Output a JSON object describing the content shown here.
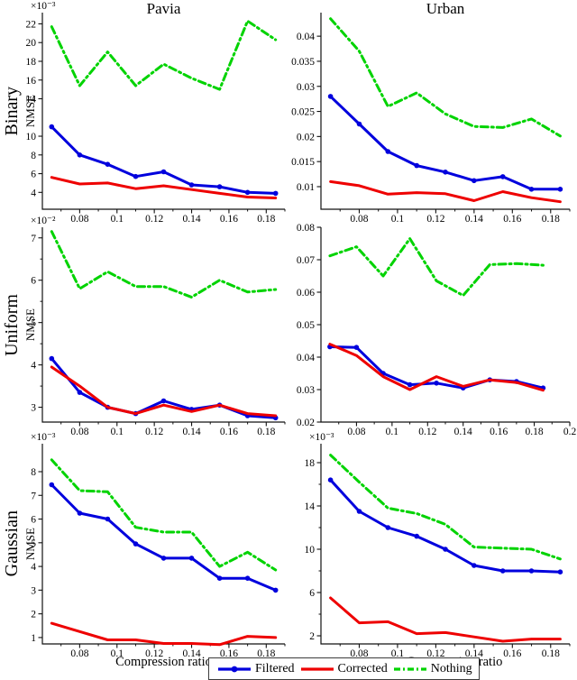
{
  "titles": {
    "col1": "Pavia",
    "col2": "Urban"
  },
  "rows": [
    {
      "name": "Binary",
      "axis": "NMSE"
    },
    {
      "name": "Uniform",
      "axis": "NMSE"
    },
    {
      "name": "Gaussian",
      "axis": "NMSE"
    }
  ],
  "x_axis": {
    "label": "Compression ratio"
  },
  "legend": {
    "items": [
      {
        "key": "filtered",
        "label": "Filtered"
      },
      {
        "key": "corrected",
        "label": "Corrected"
      },
      {
        "key": "nothing",
        "label": "Nothing"
      }
    ]
  },
  "style": {
    "filtered": {
      "color": "#0000dd",
      "dash": null,
      "marker": true
    },
    "corrected": {
      "color": "#ee0000",
      "dash": null,
      "marker": false
    },
    "nothing": {
      "color": "#00d300",
      "dash": "8 4 2 4",
      "marker": false
    },
    "axis_color": "#111111"
  },
  "chart_data": [
    {
      "id": "binary-pavia",
      "type": "line",
      "title": "Pavia",
      "row": "Binary",
      "ylabel": "NMSE",
      "exponent": "×10⁻³",
      "xlim": [
        0.06,
        0.19
      ],
      "ylim": [
        2.2,
        23.2
      ],
      "xticks": {
        "values": [
          0.08,
          0.1,
          0.12,
          0.14,
          0.16,
          0.18
        ],
        "labels": [
          "0.08",
          "0.1",
          "0.12",
          "0.14",
          "0.16",
          "0.18"
        ]
      },
      "xminor": [
        0.07,
        0.09,
        0.11,
        0.13,
        0.15,
        0.17,
        0.19
      ],
      "yticks": {
        "values": [
          4,
          6,
          8,
          10,
          14,
          16,
          18,
          20,
          22
        ],
        "labels": [
          "4",
          "6",
          "8",
          "10",
          "14",
          "16",
          "18",
          "20",
          "22"
        ]
      },
      "yminor": [],
      "x": [
        0.065,
        0.08,
        0.095,
        0.11,
        0.125,
        0.14,
        0.155,
        0.17,
        0.185
      ],
      "series": [
        {
          "name": "Nothing",
          "key": "nothing",
          "values": [
            21.7,
            15.4,
            19,
            15.4,
            17.7,
            16.2,
            15,
            22.3,
            20.3
          ]
        },
        {
          "name": "Filtered",
          "key": "filtered",
          "values": [
            11,
            8,
            7,
            5.7,
            6.2,
            4.8,
            4.6,
            4,
            3.9
          ]
        },
        {
          "name": "Corrected",
          "key": "corrected",
          "values": [
            5.6,
            4.9,
            5,
            4.4,
            4.7,
            4.3,
            3.9,
            3.5,
            3.4
          ]
        }
      ]
    },
    {
      "id": "binary-urban",
      "type": "line",
      "title": "Urban",
      "row": "Binary",
      "ylabel": "NMSE",
      "exponent": null,
      "xlim": [
        0.06,
        0.19
      ],
      "ylim": [
        0.0055,
        0.0447
      ],
      "xticks": {
        "values": [
          0.08,
          0.1,
          0.12,
          0.14,
          0.16,
          0.18
        ],
        "labels": [
          "0.08",
          "0.1",
          "0.12",
          "0.14",
          "0.16",
          "0.18"
        ]
      },
      "xminor": [
        0.07,
        0.09,
        0.11,
        0.13,
        0.15,
        0.17,
        0.19
      ],
      "yticks": {
        "values": [
          0.01,
          0.015,
          0.02,
          0.025,
          0.03,
          0.035,
          0.04
        ],
        "labels": [
          "0.01",
          "0.015",
          "0.02",
          "0.025",
          "0.03",
          "0.035",
          "0.04"
        ]
      },
      "yminor": [],
      "x": [
        0.065,
        0.08,
        0.095,
        0.11,
        0.125,
        0.14,
        0.155,
        0.17,
        0.185
      ],
      "series": [
        {
          "name": "Nothing",
          "key": "nothing",
          "values": [
            0.0435,
            0.037,
            0.026,
            0.0287,
            0.0245,
            0.022,
            0.0218,
            0.0235,
            0.0201
          ]
        },
        {
          "name": "Filtered",
          "key": "filtered",
          "values": [
            0.028,
            0.0225,
            0.017,
            0.0142,
            0.0129,
            0.0112,
            0.012,
            0.0095,
            0.0095
          ]
        },
        {
          "name": "Corrected",
          "key": "corrected",
          "values": [
            0.011,
            0.0102,
            0.0085,
            0.0088,
            0.0086,
            0.0072,
            0.009,
            0.0078,
            0.007
          ]
        }
      ]
    },
    {
      "id": "uniform-pavia",
      "type": "line",
      "title": "Pavia",
      "row": "Uniform",
      "ylabel": "NMSE",
      "exponent": "×10⁻²",
      "xlim": [
        0.06,
        0.19
      ],
      "ylim": [
        2.65,
        7.25
      ],
      "xticks": {
        "values": [
          0.08,
          0.1,
          0.12,
          0.14,
          0.16,
          0.18
        ],
        "labels": [
          "0.08",
          "0.1",
          "0.12",
          "0.14",
          "0.16",
          "0.18"
        ]
      },
      "xminor": [
        0.07,
        0.09,
        0.11,
        0.13,
        0.15,
        0.17,
        0.19
      ],
      "yticks": {
        "values": [
          3,
          4,
          5,
          6,
          7
        ],
        "labels": [
          "3",
          "4",
          "5",
          "6",
          "7"
        ]
      },
      "yminor": [
        3.5,
        4.5,
        5.5,
        6.5
      ],
      "x": [
        0.065,
        0.08,
        0.095,
        0.11,
        0.125,
        0.14,
        0.155,
        0.17,
        0.185
      ],
      "series": [
        {
          "name": "Nothing",
          "key": "nothing",
          "values": [
            7.15,
            5.8,
            6.2,
            5.85,
            5.85,
            5.6,
            6,
            5.72,
            5.78
          ]
        },
        {
          "name": "Filtered",
          "key": "filtered",
          "values": [
            4.15,
            3.35,
            3,
            2.85,
            3.15,
            2.95,
            3.05,
            2.8,
            2.75
          ]
        },
        {
          "name": "Corrected",
          "key": "corrected",
          "values": [
            3.95,
            3.5,
            3,
            2.85,
            3.05,
            2.9,
            3.05,
            2.85,
            2.8
          ]
        }
      ]
    },
    {
      "id": "uniform-urban",
      "type": "line",
      "title": "Urban",
      "row": "Uniform",
      "ylabel": "NMSE",
      "exponent": null,
      "xlim": [
        0.06,
        0.2
      ],
      "ylim": [
        0.02,
        0.08
      ],
      "xticks": {
        "values": [
          0.08,
          0.1,
          0.12,
          0.14,
          0.16,
          0.18,
          0.2
        ],
        "labels": [
          "0.08",
          "0.1",
          "0.12",
          "0.14",
          "0.16",
          "0.18",
          "0.2"
        ]
      },
      "xminor": [
        0.07,
        0.09,
        0.11,
        0.13,
        0.15,
        0.17,
        0.19
      ],
      "yticks": {
        "values": [
          0.02,
          0.03,
          0.04,
          0.05,
          0.06,
          0.07,
          0.08
        ],
        "labels": [
          "0.02",
          "0.03",
          "0.04",
          "0.05",
          "0.06",
          "0.07",
          "0.08"
        ]
      },
      "yminor": [],
      "x": [
        0.065,
        0.08,
        0.095,
        0.11,
        0.125,
        0.14,
        0.155,
        0.17,
        0.185
      ],
      "series": [
        {
          "name": "Nothing",
          "key": "nothing",
          "values": [
            0.0712,
            0.074,
            0.065,
            0.0765,
            0.0635,
            0.059,
            0.0685,
            0.0688,
            0.0683
          ]
        },
        {
          "name": "Filtered",
          "key": "filtered",
          "values": [
            0.0432,
            0.043,
            0.035,
            0.0315,
            0.032,
            0.0305,
            0.033,
            0.0325,
            0.0305
          ]
        },
        {
          "name": "Corrected",
          "key": "corrected",
          "values": [
            0.044,
            0.0405,
            0.034,
            0.03,
            0.034,
            0.031,
            0.033,
            0.0322,
            0.0298
          ]
        }
      ]
    },
    {
      "id": "gaussian-pavia",
      "type": "line",
      "title": "Pavia",
      "row": "Gaussian",
      "ylabel": "NMSE",
      "exponent": "×10⁻³",
      "xlabel": "Compression ratio",
      "xlim": [
        0.06,
        0.19
      ],
      "ylim": [
        0.73,
        9.18
      ],
      "xticks": {
        "values": [
          0.08,
          0.1,
          0.12,
          0.14,
          0.16,
          0.18
        ],
        "labels": [
          "0.08",
          "0.1",
          "0.12",
          "0.14",
          "0.16",
          "0.18"
        ]
      },
      "xminor": [
        0.07,
        0.09,
        0.11,
        0.13,
        0.15,
        0.17,
        0.19
      ],
      "yticks": {
        "values": [
          1,
          2,
          3,
          4,
          5,
          6,
          7,
          8
        ],
        "labels": [
          "1",
          "2",
          "3",
          "4",
          "5",
          "6",
          "7",
          "8"
        ]
      },
      "yminor": [],
      "x": [
        0.065,
        0.08,
        0.095,
        0.11,
        0.125,
        0.14,
        0.155,
        0.17,
        0.185
      ],
      "series": [
        {
          "name": "Nothing",
          "key": "nothing",
          "values": [
            8.5,
            7.2,
            7.15,
            5.65,
            5.45,
            5.45,
            4,
            4.6,
            3.85
          ]
        },
        {
          "name": "Filtered",
          "key": "filtered",
          "values": [
            7.45,
            6.25,
            6,
            4.95,
            4.35,
            4.35,
            3.5,
            3.5,
            3
          ]
        },
        {
          "name": "Corrected",
          "key": "corrected",
          "values": [
            1.6,
            1.25,
            0.9,
            0.9,
            0.75,
            0.75,
            0.7,
            1.05,
            1
          ]
        }
      ]
    },
    {
      "id": "gaussian-urban",
      "type": "line",
      "title": "Urban",
      "row": "Gaussian",
      "ylabel": "NMSE",
      "exponent": "×10⁻³",
      "xlabel": "Compression ratio",
      "xlim": [
        0.06,
        0.19
      ],
      "ylim": [
        1.25,
        19.75
      ],
      "xticks": {
        "values": [
          0.08,
          0.1,
          0.12,
          0.14,
          0.16,
          0.18
        ],
        "labels": [
          "0.08",
          "0.1",
          "0.12",
          "0.14",
          "0.16",
          "0.18"
        ]
      },
      "xminor": [
        0.07,
        0.09,
        0.11,
        0.13,
        0.15,
        0.17,
        0.19
      ],
      "yticks": {
        "values": [
          2,
          6,
          10,
          14,
          18
        ],
        "labels": [
          "2",
          "6",
          "10",
          "14",
          "18"
        ]
      },
      "yminor": [
        4,
        8,
        12,
        16
      ],
      "x": [
        0.065,
        0.08,
        0.095,
        0.11,
        0.125,
        0.14,
        0.155,
        0.17,
        0.185
      ],
      "series": [
        {
          "name": "Nothing",
          "key": "nothing",
          "values": [
            18.7,
            16.2,
            13.8,
            13.3,
            12.3,
            10.2,
            10.1,
            10,
            9.1
          ]
        },
        {
          "name": "Filtered",
          "key": "filtered",
          "values": [
            16.4,
            13.5,
            12,
            11.2,
            10,
            8.5,
            8,
            8,
            7.9
          ]
        },
        {
          "name": "Corrected",
          "key": "corrected",
          "values": [
            5.5,
            3.2,
            3.3,
            2.2,
            2.3,
            1.9,
            1.5,
            1.7,
            1.7
          ]
        }
      ]
    }
  ]
}
